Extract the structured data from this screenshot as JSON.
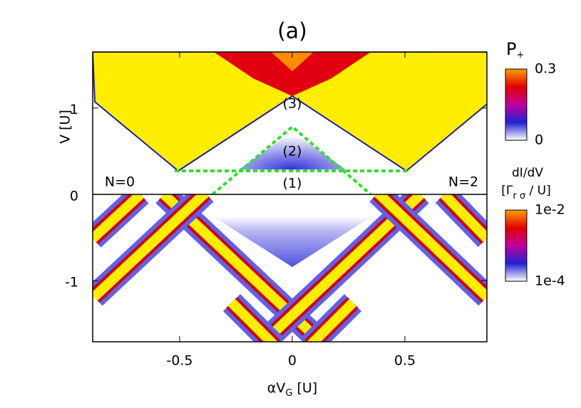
{
  "chart_data": {
    "type": "heatmap",
    "title": "(a)",
    "xlabel": [
      "αV",
      "G",
      " [U]"
    ],
    "ylabel": "V [U]",
    "xlim": [
      -0.886,
      0.864
    ],
    "ylim": [
      -1.71,
      1.65
    ],
    "xticks": [
      -0.5,
      0,
      0.5
    ],
    "yticks": [
      -1,
      0,
      1
    ],
    "annotations": [
      "(1)",
      "(2)",
      "(3)",
      "N=0",
      "N=2"
    ],
    "colorbars": [
      {
        "label": [
          [
            "P",
            "+"
          ]
        ],
        "scale": "linear",
        "lim": [
          0,
          0.3
        ],
        "ticks": [
          0,
          0.3
        ],
        "colors": [
          "#ffffff",
          "#2020d0",
          "#c000a0",
          "#e00000",
          "#ffa000"
        ]
      },
      {
        "label": [
          "dI/dV",
          [
            "[Γ",
            "r σ",
            " / U]"
          ]
        ],
        "scale": "log",
        "lim": [
          0.0001,
          0.01
        ],
        "ticks": [
          {
            "value": 0.0001,
            "label": "1e-4"
          },
          {
            "value": 0.01,
            "label": "1e-2"
          }
        ],
        "colors": [
          "#ffffff",
          "#2020d0",
          "#c000a0",
          "#e00000",
          "#ffa000"
        ]
      }
    ]
  }
}
